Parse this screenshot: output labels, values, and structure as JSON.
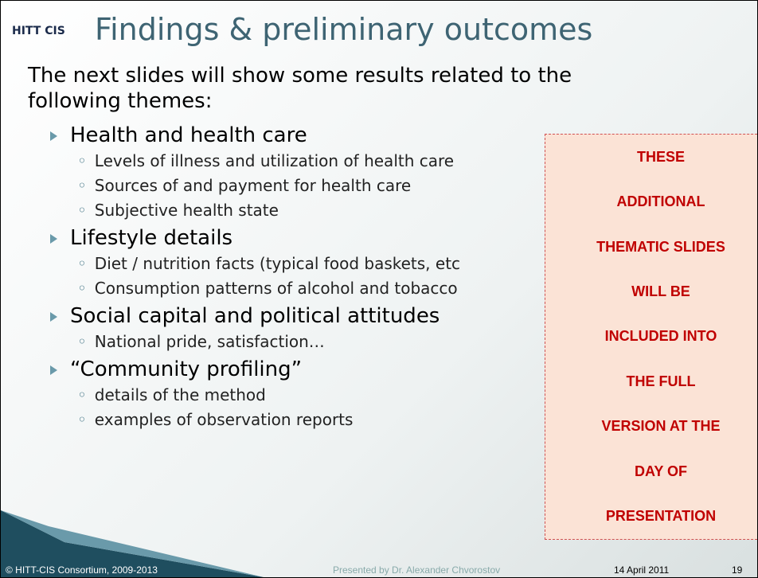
{
  "header": {
    "logo": "HITT CIS",
    "title": "Findings & preliminary outcomes"
  },
  "intro": "The next slides will show some results related to the following themes:",
  "themes": [
    {
      "title": "Health and health care",
      "items": [
        "Levels of illness and utilization of health care",
        "Sources of and payment for health care",
        "Subjective health state"
      ]
    },
    {
      "title": "Lifestyle details",
      "items": [
        "Diet / nutrition facts (typical food baskets, etc",
        "Consumption patterns of alcohol and tobacco"
      ]
    },
    {
      "title": "Social capital and political attitudes",
      "items": [
        "National pride, satisfaction…"
      ]
    },
    {
      "title": "“Community profiling”",
      "items": [
        "details of the method",
        "examples of observation reports"
      ]
    }
  ],
  "notice": [
    "THESE",
    "ADDITIONAL",
    "THEMATIC SLIDES",
    "WILL BE",
    "INCLUDED INTO",
    "THE FULL",
    "VERSION AT THE",
    "DAY OF",
    "PRESENTATION"
  ],
  "footer": {
    "copyright": "© HITT-CIS Consortium, 2009-2013",
    "presenter": "Presented by Dr. Alexander Chvorostov",
    "date": "14 April 2011",
    "page": "19"
  }
}
